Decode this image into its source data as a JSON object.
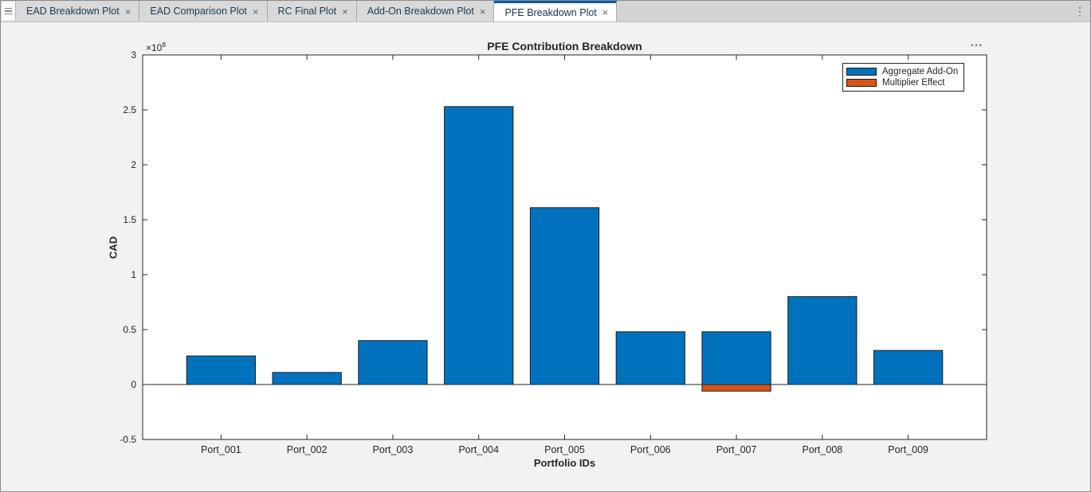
{
  "window": {
    "tabbar": {
      "menu_icon": "tab-list-icon",
      "overflow_icon": "⋮",
      "close_glyph": "×",
      "tabs": [
        {
          "label": "EAD Breakdown Plot",
          "active": false
        },
        {
          "label": "EAD Comparison Plot",
          "active": false
        },
        {
          "label": "RC Final Plot",
          "active": false
        },
        {
          "label": "Add-On Breakdown Plot",
          "active": false
        },
        {
          "label": "PFE Breakdown Plot",
          "active": true
        }
      ]
    },
    "figure_options_icon": "•••"
  },
  "chart_data": {
    "type": "bar",
    "title": "PFE Contribution Breakdown",
    "xlabel": "Portfolio IDs",
    "ylabel": "CAD",
    "y_multiplier": {
      "base": "×10",
      "exp": "8"
    },
    "value_scale_note": "values are in units of 1e8 CAD",
    "categories": [
      "Port_001",
      "Port_002",
      "Port_003",
      "Port_004",
      "Port_005",
      "Port_006",
      "Port_007",
      "Port_008",
      "Port_009"
    ],
    "series": [
      {
        "name": "Aggregate Add-On",
        "color": "#0072BD",
        "values": [
          0.26,
          0.11,
          0.4,
          2.53,
          1.61,
          0.48,
          0.48,
          0.8,
          0.31
        ]
      },
      {
        "name": "Multiplier Effect",
        "color": "#D95319",
        "values": [
          0,
          0,
          0,
          0,
          0,
          0,
          -0.06,
          0,
          0
        ]
      }
    ],
    "ylim": [
      -0.5,
      3
    ],
    "yticks": [
      -0.5,
      0,
      0.5,
      1,
      1.5,
      2,
      2.5,
      3
    ],
    "ytick_labels": [
      "-0.5",
      "0",
      "0.5",
      "1",
      "1.5",
      "2",
      "2.5",
      "3"
    ],
    "grid": false,
    "box": true,
    "legend_position": "northeast",
    "colors": {
      "axis": "#262626",
      "bar_edge": "#1a1a1a",
      "figure_bg": "#F2F2F2",
      "plot_bg": "#FFFFFF"
    }
  }
}
